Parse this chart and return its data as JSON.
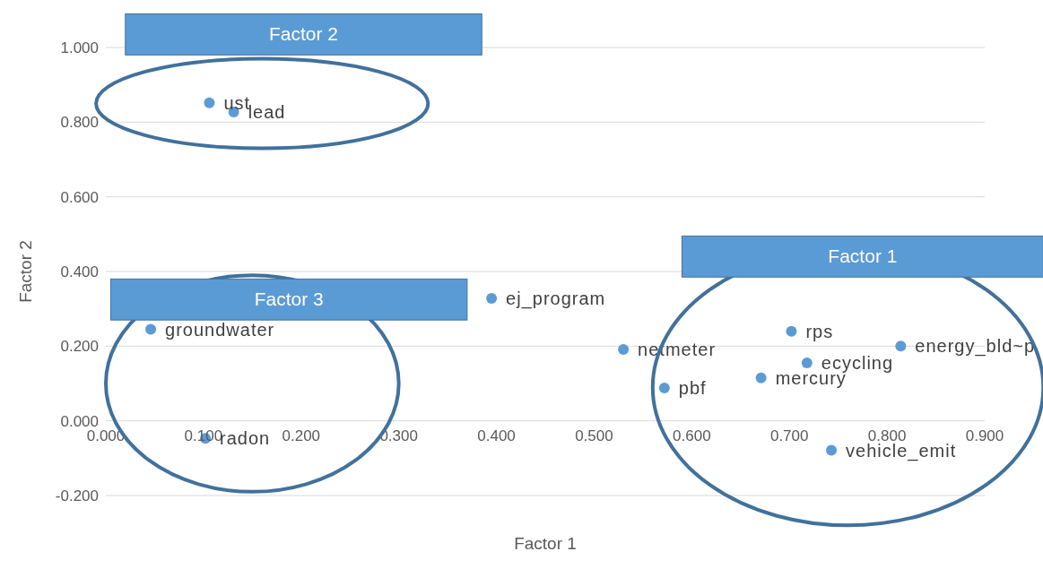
{
  "chart_data": {
    "type": "scatter",
    "xlabel": "Factor 1",
    "ylabel": "Factor 2",
    "x": [
      0.106,
      0.131,
      0.046,
      0.102,
      0.395,
      0.53,
      0.572,
      0.671,
      0.702,
      0.718,
      0.814,
      0.743
    ],
    "series": [
      {
        "color": "#5b9bd5",
        "values": [
          0.852,
          0.827,
          0.245,
          -0.047,
          0.328,
          0.191,
          0.088,
          0.115,
          0.24,
          0.155,
          0.2,
          -0.079
        ]
      }
    ],
    "xlim": [
      0,
      0.9
    ],
    "xticks": [
      {
        "value": 0,
        "label": "0.000"
      },
      {
        "value": 0.1,
        "label": "0.100"
      },
      {
        "value": 0.2,
        "label": "0.200"
      },
      {
        "value": 0.3,
        "label": "0.300"
      },
      {
        "value": 0.4,
        "label": "0.400"
      },
      {
        "value": 0.5,
        "label": "0.500"
      },
      {
        "value": 0.6,
        "label": "0.600"
      },
      {
        "value": 0.7,
        "label": "0.700"
      },
      {
        "value": 0.8,
        "label": "0.800"
      },
      {
        "value": 0.9,
        "label": "0.900"
      }
    ],
    "ylim": [
      -0.2,
      1.0
    ],
    "yticks": [
      {
        "value": -0.2,
        "label": "-0.200"
      },
      {
        "value": 0,
        "label": "0.000"
      },
      {
        "value": 0.2,
        "label": "0.200"
      },
      {
        "value": 0.4,
        "label": "0.400"
      },
      {
        "value": 0.6,
        "label": "0.600"
      },
      {
        "value": 0.8,
        "label": "0.800"
      },
      {
        "value": 1.0,
        "label": "1.000"
      }
    ],
    "grid": "y",
    "marker": "circle",
    "annotations": [
      "Factor 2",
      "Factor 1",
      "Factor 3",
      {
        "text": "ust",
        "x": 0.106,
        "y": 0.852
      },
      {
        "text": "lead",
        "x": 0.131,
        "y": 0.827
      },
      {
        "text": "groundwater",
        "x": 0.046,
        "y": 0.245
      },
      {
        "text": "radon",
        "x": 0.102,
        "y": -0.047
      },
      {
        "text": "ej_program",
        "x": 0.395,
        "y": 0.328
      },
      {
        "text": "netmeter",
        "x": 0.53,
        "y": 0.191
      },
      {
        "text": "pbf",
        "x": 0.572,
        "y": 0.088
      },
      {
        "text": "mercury",
        "x": 0.671,
        "y": 0.115
      },
      {
        "text": "rps",
        "x": 0.702,
        "y": 0.24
      },
      {
        "text": "ecycling",
        "x": 0.718,
        "y": 0.155
      },
      {
        "text": "energy_bld~p",
        "x": 0.814,
        "y": 0.2
      },
      {
        "text": "vehicle_emit",
        "x": 0.743,
        "y": -0.079
      }
    ]
  }
}
